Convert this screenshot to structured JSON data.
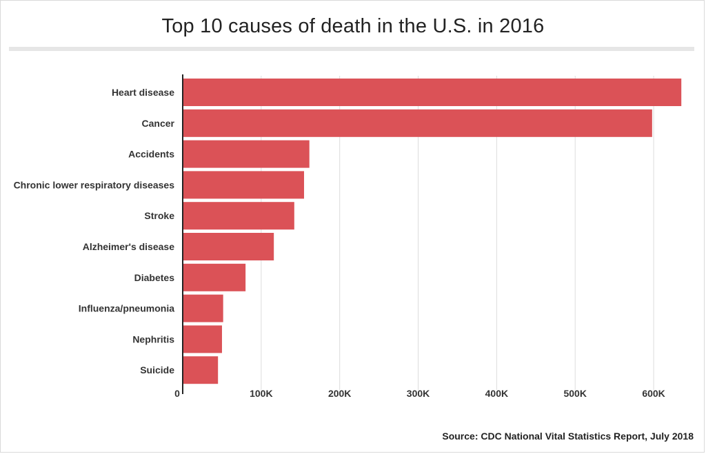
{
  "title": "Top 10 causes of death in the U.S. in 2016",
  "source": "Source: CDC National Vital Statistics Report, July 2018",
  "colors": {
    "bar": "#db5257",
    "grid": "#dcdcdc",
    "axis": "#222222",
    "label": "#333333"
  },
  "chart_data": {
    "type": "bar",
    "orientation": "horizontal",
    "categories": [
      "Heart disease",
      "Cancer",
      "Accidents",
      "Chronic lower respiratory diseases",
      "Stroke",
      "Alzheimer's disease",
      "Diabetes",
      "Influenza/pneumonia",
      "Nephritis",
      "Suicide"
    ],
    "values": [
      635260,
      598038,
      161374,
      154596,
      142142,
      116103,
      80058,
      51537,
      50046,
      44965
    ],
    "xlim": [
      0,
      650000
    ],
    "xticks": [
      0,
      100000,
      200000,
      300000,
      400000,
      500000,
      600000
    ],
    "xtick_labels": [
      "0",
      "100K",
      "200K",
      "300K",
      "400K",
      "500K",
      "600K"
    ],
    "grid": true
  }
}
